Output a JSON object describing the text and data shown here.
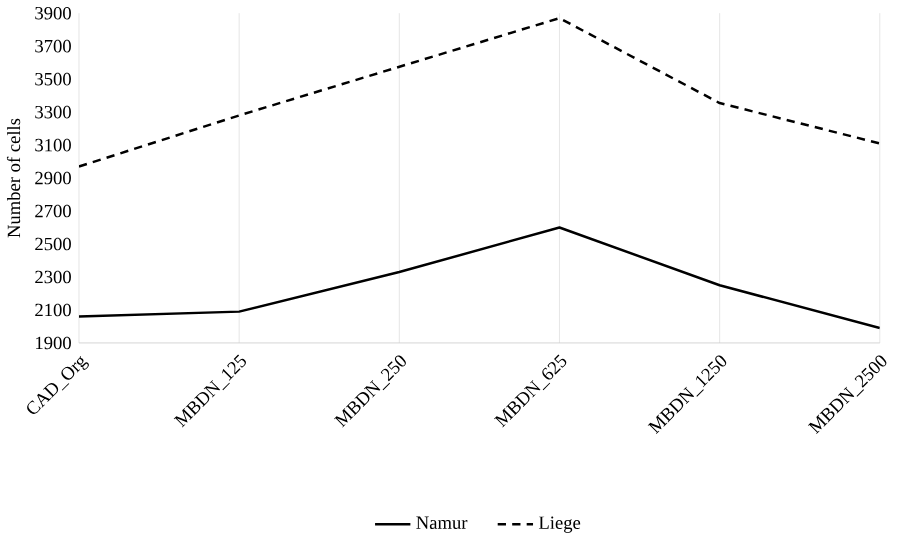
{
  "chart_data": {
    "type": "line",
    "ylabel": "Number of cells",
    "categories": [
      "CAD_Org",
      "MBDN_125",
      "MBDN_250",
      "MBDN_625",
      "MBDN_1250",
      "MBDN_2500"
    ],
    "series": [
      {
        "name": "Namur",
        "color": "#000000",
        "line_style": "solid",
        "values": [
          2060,
          2090,
          2330,
          2600,
          2250,
          1990
        ]
      },
      {
        "name": "Liege",
        "color": "#000000",
        "line_style": "dashed",
        "values": [
          2970,
          3280,
          3575,
          3870,
          3355,
          3110
        ]
      }
    ],
    "ylim": [
      1900,
      3900
    ],
    "yticks": [
      1900,
      2100,
      2300,
      2500,
      2700,
      2900,
      3100,
      3300,
      3500,
      3700,
      3900
    ],
    "grid": "x",
    "legend": "bottom",
    "marker": "none"
  }
}
